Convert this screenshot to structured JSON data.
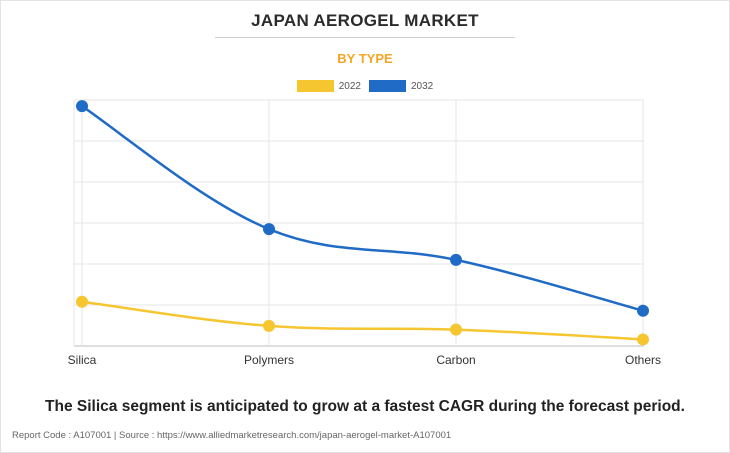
{
  "title": "JAPAN AEROGEL MARKET",
  "subtitle": "BY TYPE",
  "caption": "The Silica segment is anticipated to grow at a fastest CAGR during the forecast period.",
  "footer": "Report Code : A107001  |  Source : https://www.alliedmarketresearch.com/japan-aerogel-market-A107001",
  "colors": {
    "series_2022": "#f5c630",
    "series_2032": "#1f6bc5",
    "subtitle": "#f5a623"
  },
  "chart_data": {
    "type": "line",
    "categories": [
      "Silica",
      "Polymers",
      "Carbon",
      "Others"
    ],
    "series": [
      {
        "name": "2022",
        "values": [
          10.8,
          4.9,
          4.0,
          1.6
        ]
      },
      {
        "name": "2032",
        "values": [
          58.5,
          28.5,
          21.0,
          8.6
        ]
      }
    ],
    "ylim": [
      0,
      60
    ],
    "y_ticks": [
      0,
      10,
      20,
      30,
      40,
      50,
      60
    ],
    "y_tick_labels_shown": false,
    "legend_position": "top-center",
    "grid": true,
    "smooth": true
  }
}
